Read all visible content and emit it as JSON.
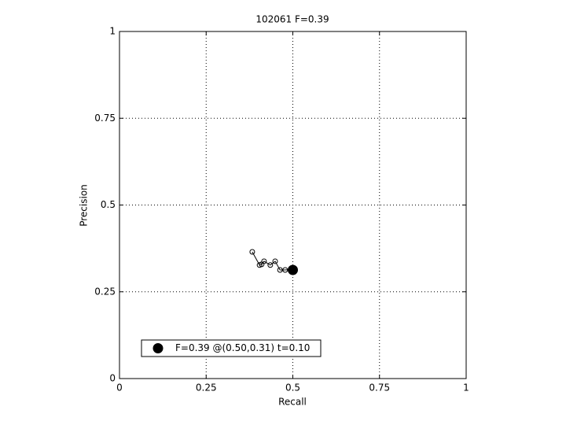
{
  "chart_data": {
    "type": "line",
    "title": "102061 F=0.39",
    "x_label": "Recall",
    "y_label": "Precision",
    "xlim": [
      0,
      1
    ],
    "ylim": [
      0,
      1
    ],
    "xticks": [
      0,
      0.25,
      0.5,
      0.75,
      1
    ],
    "yticks": [
      0,
      0.25,
      0.5,
      0.75,
      1
    ],
    "grid": true,
    "legend_position": "lower left",
    "series": [
      {
        "color": "#000000",
        "marker": "open-circle",
        "x": [
          0.383,
          0.404,
          0.41,
          0.417,
          0.435,
          0.449,
          0.463,
          0.478,
          0.501
        ],
        "values": [
          0.365,
          0.327,
          0.329,
          0.338,
          0.327,
          0.338,
          0.313,
          0.313,
          0.315
        ]
      },
      {
        "name": "F=0.39 @(0.50,0.31) t=0.10",
        "color": "#000000",
        "marker": "filled-circle",
        "x": [
          0.5
        ],
        "values": [
          0.313
        ]
      }
    ]
  }
}
